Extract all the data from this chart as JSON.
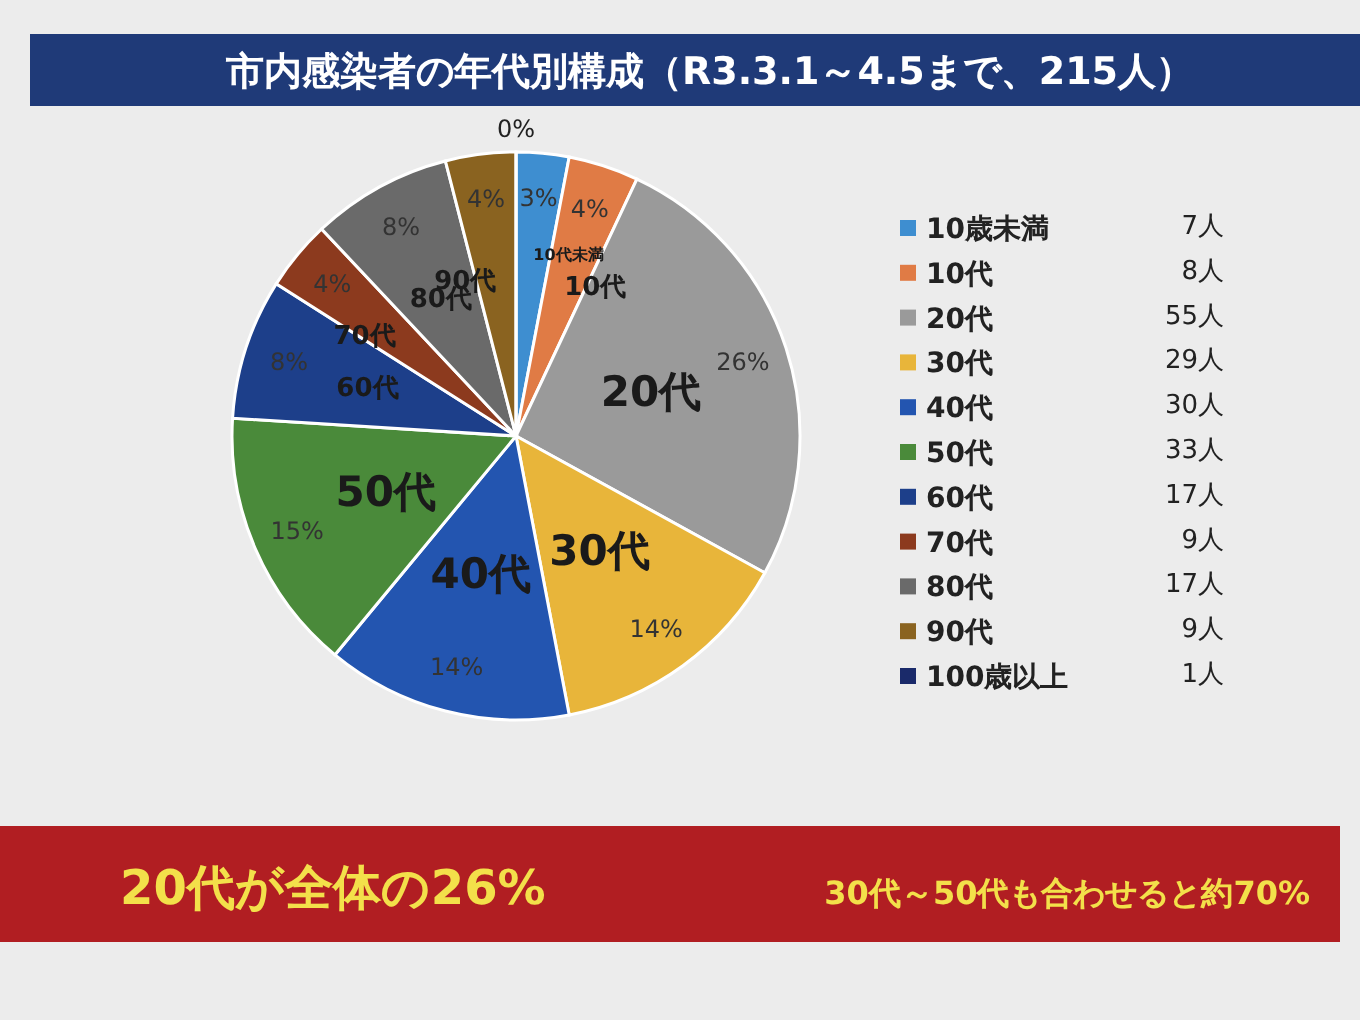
{
  "chart_data": {
    "type": "pie",
    "title": "市内感染者の年代別構成（R3.3.1～4.5まで、215人）",
    "categories": [
      "10歳未満",
      "10代",
      "20代",
      "30代",
      "40代",
      "50代",
      "60代",
      "70代",
      "80代",
      "90代",
      "100歳以上"
    ],
    "values": [
      3,
      4,
      26,
      14,
      14,
      15,
      8,
      4,
      8,
      4,
      0
    ],
    "colors": [
      "#3e8ed0",
      "#e07b45",
      "#9a9a9a",
      "#e8b53a",
      "#2355b0",
      "#4a8a3a",
      "#1d3f8a",
      "#8c3a1e",
      "#6a6a6a",
      "#8a6320",
      "#1a2a6a"
    ],
    "value_labels": [
      "3%",
      "4%",
      "26%",
      "14%",
      "14%",
      "15%",
      "8%",
      "4%",
      "8%",
      "4%",
      "0%"
    ],
    "legend": "right",
    "annotations": [
      "7人",
      "8人",
      "55人",
      "29人",
      "30人",
      "33人",
      "17人",
      "9人",
      "17人",
      "9人",
      "1人",
      {
        "text": "10代未満",
        "x": "10歳未満"
      },
      "20代が全体の26%",
      "30代～50代も合わせると約70%"
    ]
  }
}
